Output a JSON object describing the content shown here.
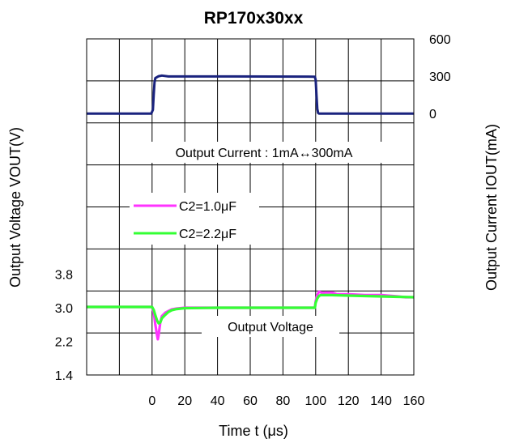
{
  "chart_data": {
    "type": "line",
    "title": "RP170x30xx",
    "xlabel": "Time t (μs)",
    "ylabel_left": "Output Voltage VOUT(V)",
    "ylabel_right": "Output Current IOUT(mA)",
    "x_ticks": [
      "0",
      "20",
      "40",
      "60",
      "80",
      "100",
      "120",
      "140",
      "160"
    ],
    "x_range": [
      -40,
      160
    ],
    "y_left_ticks": [
      "1.4",
      "2.2",
      "3.0",
      "3.8"
    ],
    "y_left_range": [
      1.4,
      9.4
    ],
    "y_right_ticks": [
      "0",
      "300",
      "600"
    ],
    "y_right_range": [
      -2100,
      600
    ],
    "grid": true,
    "annotations": {
      "current": "Output Current : 1mA↔300mA",
      "voltage": "Output Voltage"
    },
    "legend": [
      {
        "label": "C2=1.0μF",
        "color": "#ff33ff"
      },
      {
        "label": "C2=2.2μF",
        "color": "#33ff33"
      }
    ],
    "series": [
      {
        "name": "Output Current",
        "color": "#1a237e",
        "axis": "right",
        "x": [
          -40,
          -0.5,
          0.5,
          1,
          1.5,
          2,
          4,
          6,
          10,
          50,
          99.5,
          100,
          100.5,
          101,
          101.5,
          102,
          110,
          160
        ],
        "y": [
          0,
          0,
          30,
          150,
          250,
          285,
          300,
          305,
          298,
          298,
          296,
          270,
          150,
          40,
          5,
          0,
          0,
          0
        ]
      },
      {
        "name": "C2=1.0μF",
        "color": "#ff33ff",
        "axis": "left",
        "x": [
          -40,
          0,
          1,
          2,
          3,
          3.5,
          4,
          5,
          6,
          8,
          10,
          12,
          15,
          20,
          40,
          99.5,
          100,
          101,
          102,
          103,
          104,
          106,
          110,
          113,
          120,
          130,
          140,
          150,
          155,
          160
        ],
        "y": [
          3.02,
          3.02,
          2.9,
          2.6,
          2.35,
          2.25,
          2.35,
          2.65,
          2.8,
          2.88,
          2.92,
          2.96,
          2.98,
          3.0,
          3.0,
          3.0,
          3.15,
          3.3,
          3.38,
          3.37,
          3.35,
          3.36,
          3.36,
          3.32,
          3.32,
          3.3,
          3.3,
          3.27,
          3.25,
          3.25
        ]
      },
      {
        "name": "C2=2.2μF",
        "color": "#33ff33",
        "axis": "left",
        "x": [
          -40,
          0,
          1,
          2,
          3,
          4,
          5,
          6,
          8,
          10,
          12,
          15,
          20,
          40,
          99.5,
          100,
          101,
          102,
          103,
          104,
          110,
          120,
          130,
          140,
          150,
          160
        ],
        "y": [
          3.02,
          3.02,
          2.95,
          2.82,
          2.7,
          2.63,
          2.65,
          2.75,
          2.83,
          2.9,
          2.94,
          2.97,
          2.99,
          3.0,
          3.0,
          3.12,
          3.22,
          3.28,
          3.3,
          3.3,
          3.3,
          3.29,
          3.28,
          3.27,
          3.26,
          3.25
        ]
      }
    ]
  }
}
